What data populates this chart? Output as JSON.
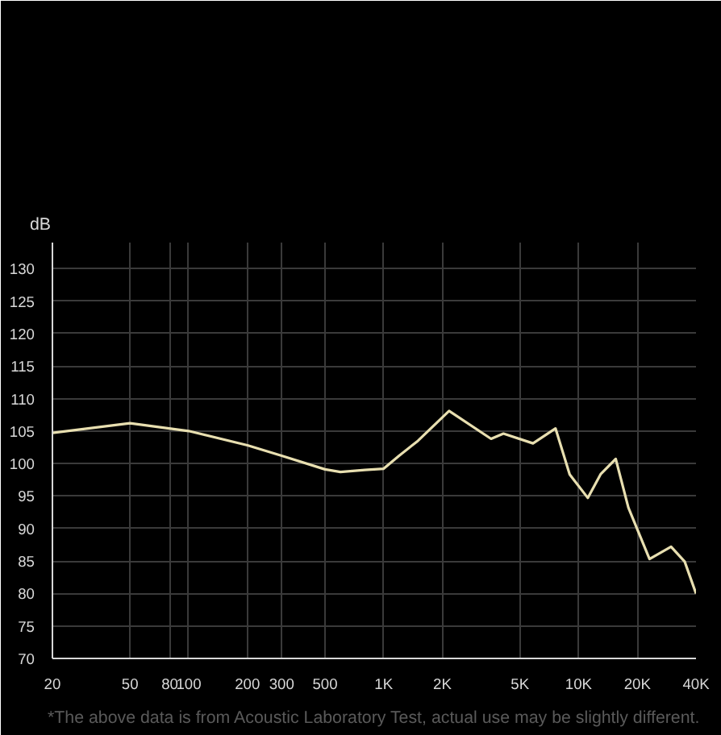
{
  "chart_data": {
    "type": "line",
    "ylabel": "dB",
    "x": [
      20,
      50,
      100,
      200,
      300,
      500,
      600,
      800,
      1000,
      1200,
      1500,
      2166,
      3556,
      4115,
      5834,
      7610,
      9000,
      11150,
      13000,
      15500,
      18000,
      23100,
      29800,
      35000,
      40000
    ],
    "series": [
      {
        "color": "#e8dfb0",
        "values": [
          104.7,
          106.2,
          105,
          102.8,
          101.2,
          99.1,
          98.7,
          99,
          99.2,
          101.2,
          103.5,
          108.1,
          103.8,
          104.6,
          103.1,
          105.4,
          98.3,
          94.7,
          98.4,
          100.7,
          93.2,
          85.3,
          87.2,
          84.9,
          80
        ]
      }
    ],
    "log": "x",
    "xlim": [
      20,
      40000
    ],
    "ylim": [
      70,
      134
    ],
    "xticks": [
      20,
      50,
      80,
      100,
      200,
      300,
      500,
      {
        "value": 1000,
        "label": "1K"
      },
      {
        "value": 2000,
        "label": "2K"
      },
      {
        "value": 5000,
        "label": "5K"
      },
      {
        "value": 10000,
        "label": "10K"
      },
      {
        "value": 20000,
        "label": "20K"
      },
      {
        "value": 40000,
        "label": "40K"
      }
    ],
    "yticks": [
      70,
      75,
      80,
      85,
      90,
      95,
      100,
      105,
      110,
      115,
      120,
      125,
      130
    ],
    "grid": true,
    "annotations": [
      "*The above data is from Acoustic Laboratory Test, actual use may be slightly different."
    ]
  }
}
